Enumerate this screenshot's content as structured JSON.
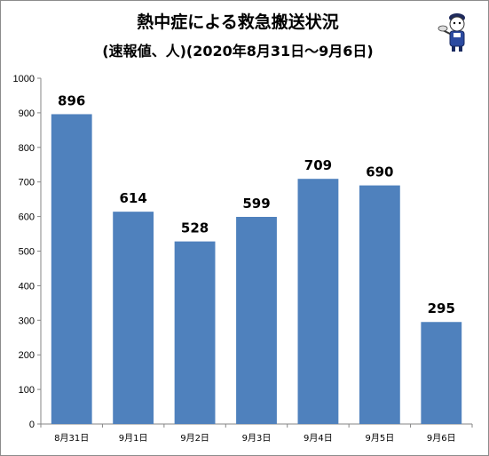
{
  "chart_data": {
    "type": "bar",
    "title": "熱中症による救急搬送状況",
    "subtitle": "(速報値、人)(2020年8月31日～9月6日)",
    "categories": [
      "8月31日",
      "9月1日",
      "9月2日",
      "9月3日",
      "9月4日",
      "9月5日",
      "9月6日"
    ],
    "values": [
      896,
      614,
      528,
      599,
      709,
      690,
      295
    ],
    "yticks": [
      "0",
      "100",
      "200",
      "300",
      "400",
      "500",
      "600",
      "700",
      "800",
      "900",
      "1000"
    ],
    "ylim": [
      0,
      1000
    ],
    "grid": false,
    "legend": "none",
    "colors": {
      "bar": "#4f81bd",
      "axis": "#868686",
      "frame": "#8c8c8c"
    }
  },
  "mascot": {
    "icon": "mascot-character-icon"
  }
}
